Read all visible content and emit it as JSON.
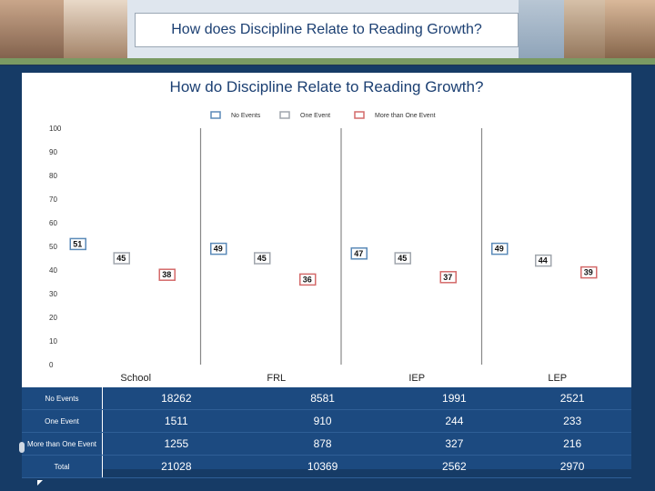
{
  "banner": {
    "title": "How does Discipline Relate to Reading Growth?",
    "photos": [
      "child-photo-1",
      "teacher-photo",
      "classroom-photo",
      "classroom-photo-2",
      "child-photo-2",
      "child-photo-3"
    ]
  },
  "chart_data": {
    "type": "bar",
    "title": "How do Discipline Relate to Reading Growth?",
    "categories": [
      "School",
      "FRL",
      "IEP",
      "LEP"
    ],
    "ylim": [
      0,
      100
    ],
    "yticks": [
      "0",
      "10",
      "20",
      "30",
      "40",
      "50",
      "60",
      "70",
      "80",
      "90",
      "100"
    ],
    "legend_position": "top-center",
    "series": [
      {
        "name": "No Events",
        "values": [
          51,
          49,
          47,
          49
        ],
        "color": "#5b8ab8"
      },
      {
        "name": "One Event",
        "values": [
          45,
          45,
          45,
          44
        ],
        "color": "#a0a6ad"
      },
      {
        "name": "More than One Event",
        "values": [
          38,
          36,
          37,
          39
        ],
        "color": "#d46a6a"
      }
    ],
    "labels": [
      [
        "51",
        "49",
        "47",
        "49"
      ],
      [
        "45",
        "45",
        "45",
        "44"
      ],
      [
        "38",
        "36",
        "37",
        "39"
      ]
    ],
    "grid": false
  },
  "table": {
    "rows": [
      {
        "label": "No Events",
        "values": [
          "18262",
          "8581",
          "1991",
          "2521"
        ]
      },
      {
        "label": "One Event",
        "values": [
          "1511",
          "910",
          "244",
          "233"
        ]
      },
      {
        "label": "More than One Event",
        "values": [
          "1255",
          "878",
          "327",
          "216"
        ]
      },
      {
        "label": "Total",
        "values": [
          "21028",
          "10369",
          "2562",
          "2970"
        ]
      }
    ]
  }
}
